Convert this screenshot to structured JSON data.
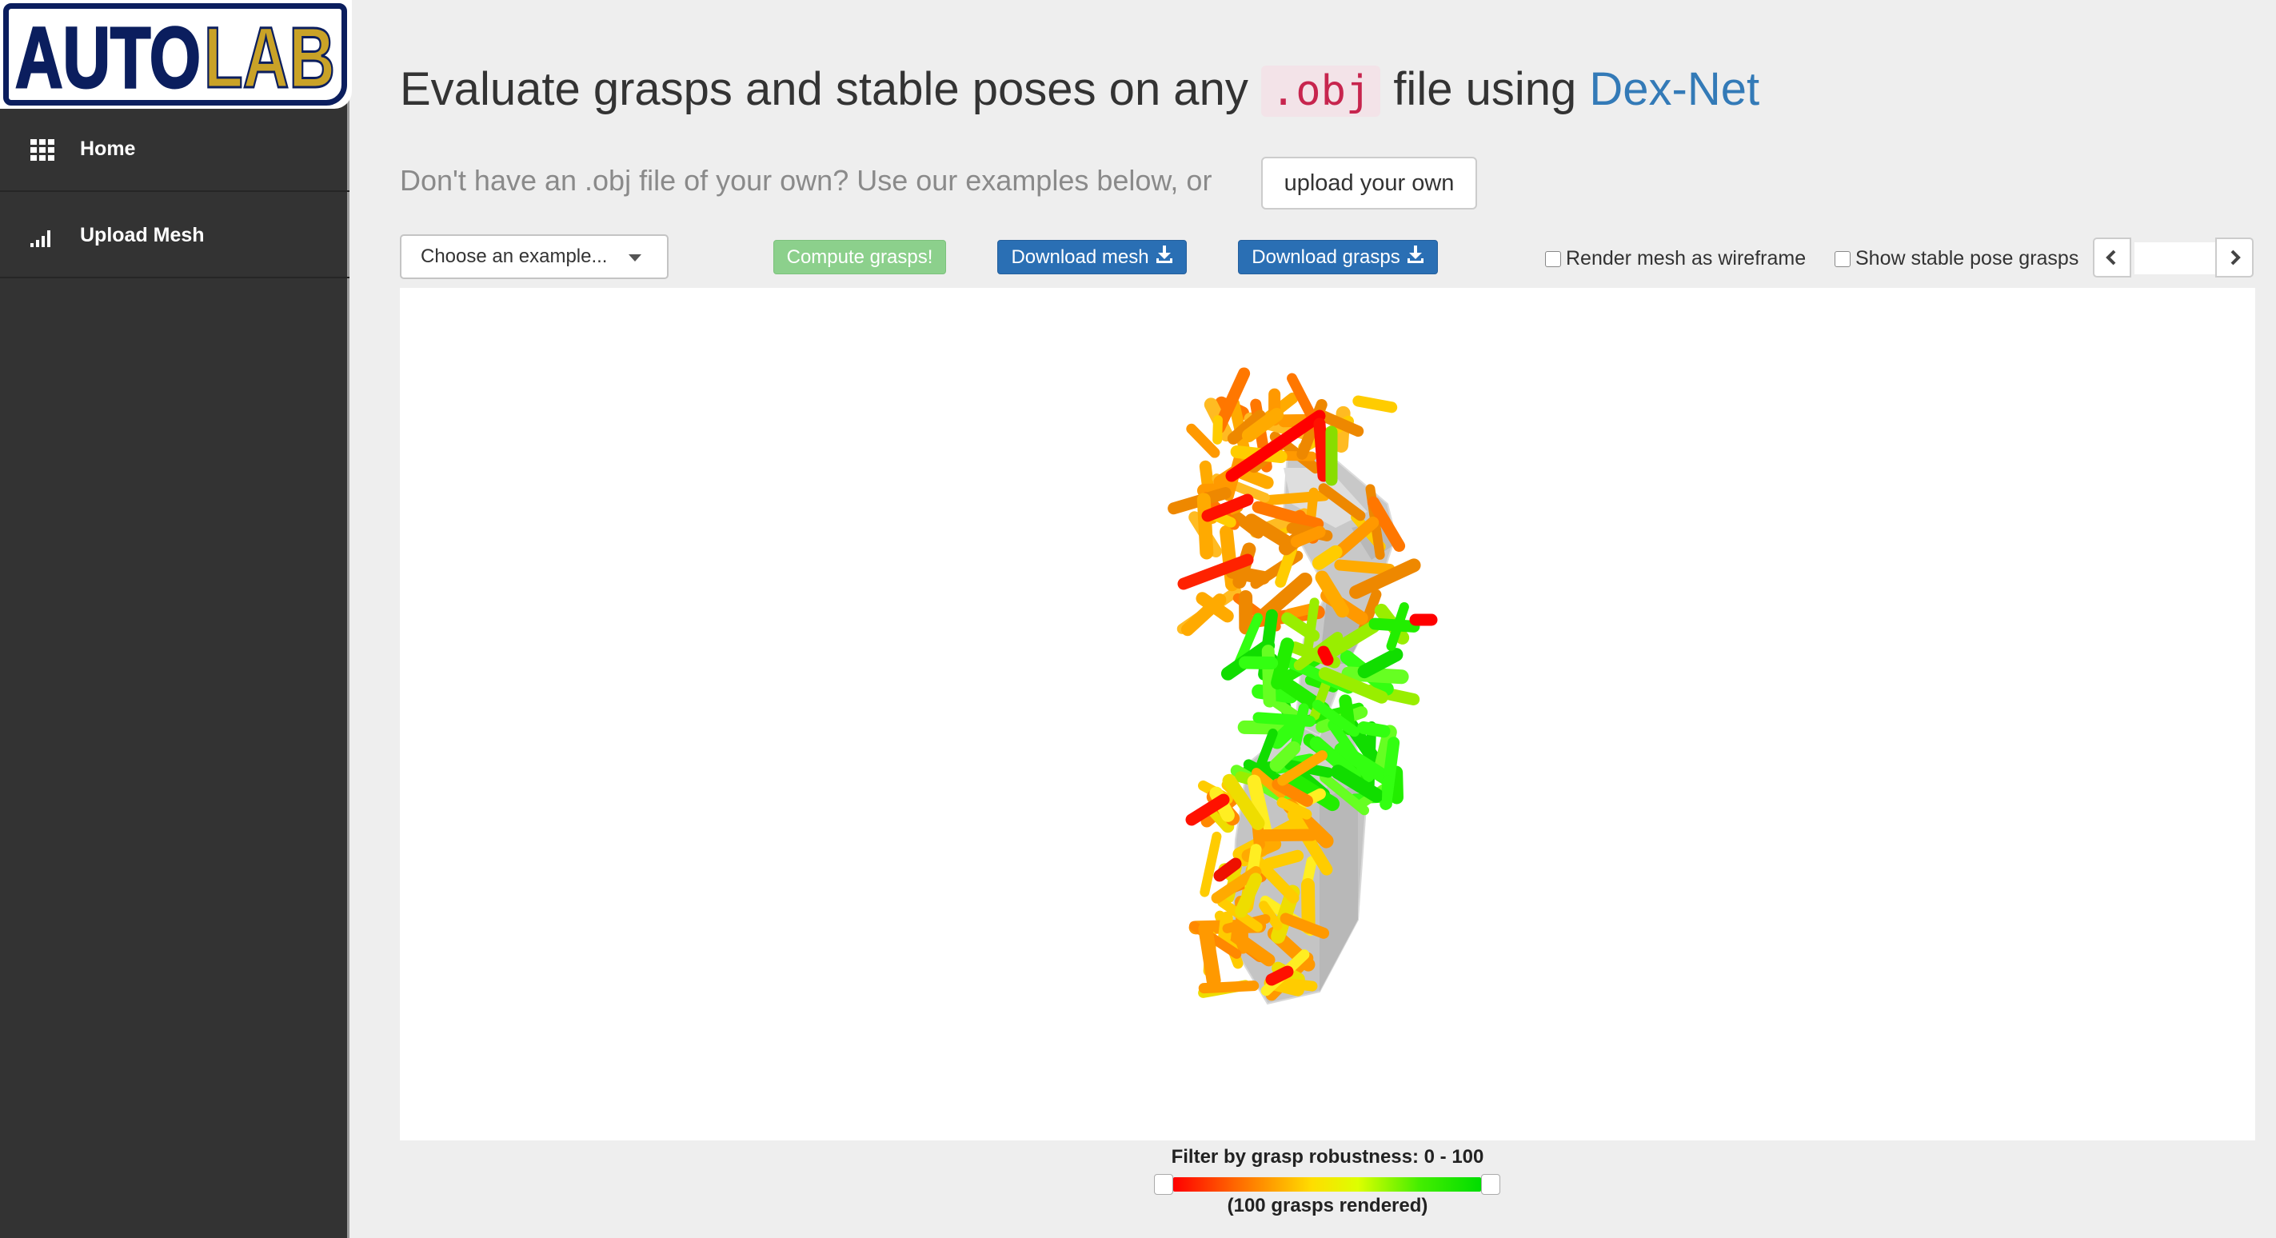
{
  "logo": {
    "part1": "AUTO",
    "part2": "LAB"
  },
  "sidebar": {
    "items": [
      {
        "label": "Home",
        "icon": "grid-icon"
      },
      {
        "label": "Upload Mesh",
        "icon": "signal-bars-icon"
      }
    ]
  },
  "header": {
    "title_prefix": "Evaluate grasps and stable poses on any",
    "title_code": ".obj",
    "title_middle": "file using",
    "title_link": "Dex-Net"
  },
  "subheader": {
    "text": "Don't have an .obj file of your own? Use our examples below, or",
    "upload_label": "upload your own"
  },
  "toolbar": {
    "example_select": "Choose an example...",
    "compute_label": "Compute grasps!",
    "download_mesh_label": "Download mesh",
    "download_grasps_label": "Download grasps",
    "wireframe_label": "Render mesh as wireframe",
    "wireframe_checked": false,
    "stable_pose_label": "Show stable pose grasps",
    "stable_pose_checked": false,
    "pose_index_value": ""
  },
  "filter": {
    "label": "Filter by grasp robustness: 0 - 100",
    "min": 0,
    "max": 100,
    "rendered": "(100 grasps rendered)"
  },
  "colors": {
    "sidebar_bg": "#333333",
    "link": "#337ab7",
    "primary_button": "#2a6fb4",
    "success_button": "#8cd08c",
    "logo_blue": "#0b1e5e",
    "logo_gold": "#c9a227",
    "code_text": "#c7254e",
    "grasp_low": "#ff0000",
    "grasp_mid": "#ffcc00",
    "grasp_high": "#00ee00"
  }
}
